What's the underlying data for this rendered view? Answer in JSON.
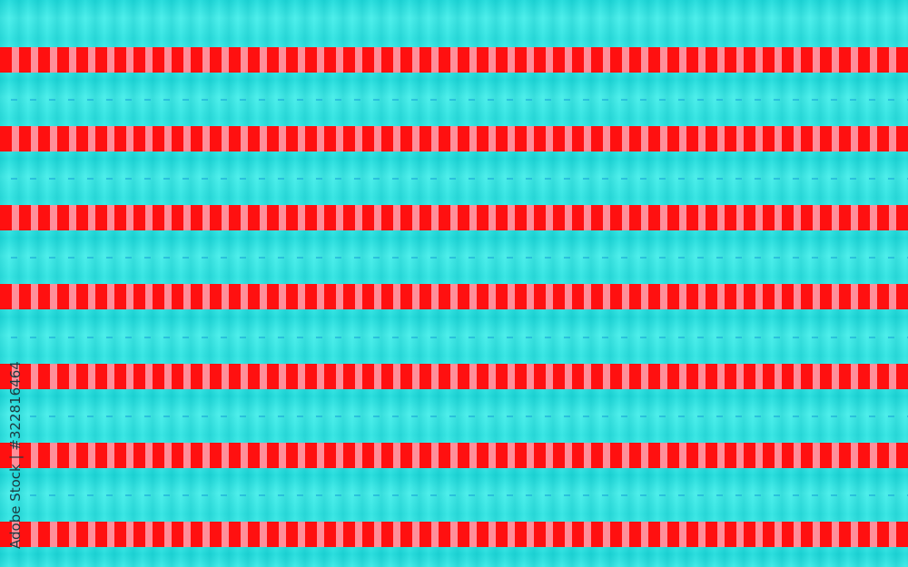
{
  "image": {
    "description_colors": {
      "background": "#30e6e4",
      "band_red": "#ff1010",
      "band_pink": "#ff8e9a"
    },
    "watermark": "Adobe Stock | #322816464"
  }
}
